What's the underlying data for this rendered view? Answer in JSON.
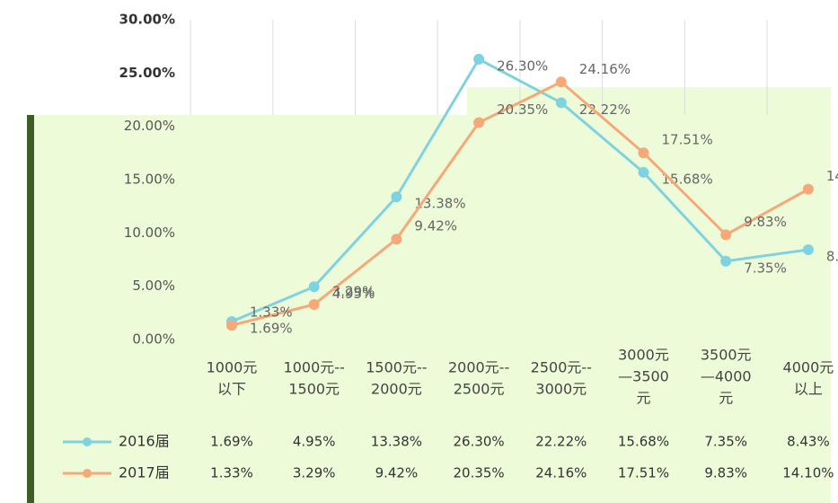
{
  "chart_data": {
    "type": "line",
    "categories": [
      [
        "1000元",
        "以下"
      ],
      [
        "1000元--",
        "1500元"
      ],
      [
        "1500元--",
        "2000元"
      ],
      [
        "2000元--",
        "2500元"
      ],
      [
        "2500元--",
        "3000元"
      ],
      [
        "3000元",
        "—3500",
        "元"
      ],
      [
        "3500元",
        "—4000",
        "元"
      ],
      [
        "4000元",
        "以上"
      ]
    ],
    "series": [
      {
        "name": "2016届",
        "color": "#7fd3e0",
        "values": [
          1.69,
          4.95,
          13.38,
          26.3,
          22.22,
          15.68,
          7.35,
          8.43
        ],
        "value_labels": [
          "1.69%",
          "4.95%",
          "13.38%",
          "26.30%",
          "22.22%",
          "15.68%",
          "7.35%",
          "8.43%"
        ]
      },
      {
        "name": "2017届",
        "color": "#f6a878",
        "values": [
          1.33,
          3.29,
          9.42,
          20.35,
          24.16,
          17.51,
          9.83,
          14.1
        ],
        "value_labels": [
          "1.33%",
          "3.29%",
          "9.42%",
          "20.35%",
          "24.16%",
          "17.51%",
          "9.83%",
          "14.10%"
        ]
      }
    ],
    "ylim": [
      0,
      30
    ],
    "yticks": [
      {
        "value": 0,
        "label": "0.00%"
      },
      {
        "value": 5,
        "label": "5.00%"
      },
      {
        "value": 10,
        "label": "10.00%"
      },
      {
        "value": 15,
        "label": "15.00%"
      },
      {
        "value": 20,
        "label": "20.00%"
      },
      {
        "value": 25,
        "label": "25.00%"
      },
      {
        "value": 30,
        "label": "30.00%"
      }
    ],
    "grid": true
  }
}
